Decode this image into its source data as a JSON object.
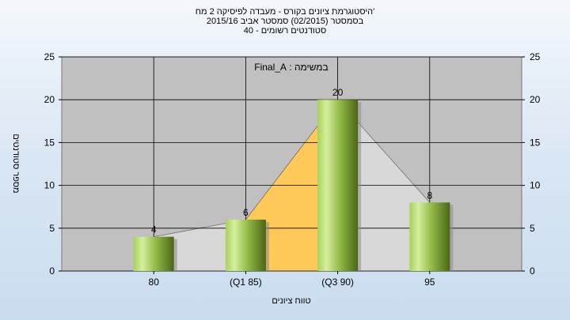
{
  "chart_data": {
    "type": "bar",
    "title_lines": [
      "היסטוגרמת ציונים בקורס - מעבדה לפיסיקה 2 מח'",
      "בסמסטר  (02/2015)  סמסטר אביב 2015/16",
      "סטודנטים רשומים - 40"
    ],
    "annotation": "במשימה : Final_A",
    "categories": [
      "80",
      "(Q1 85)",
      "(Q3 90)",
      "95"
    ],
    "values": [
      4,
      6,
      20,
      8
    ],
    "data_labels": [
      "4",
      "6",
      "20",
      "8"
    ],
    "ylim": [
      0,
      25
    ],
    "yticks": [
      0,
      5,
      10,
      15,
      20,
      25
    ],
    "xlabel": "טווח ציונים",
    "ylabel": "מספר סטודנטים",
    "secondary_y_axis": true,
    "grid": true,
    "colors": {
      "plot_background": "#c0c0c0",
      "bar_light": "#c6e68a",
      "bar_dark": "#4e6a18",
      "area_quartile": "#ffc95a",
      "area_light": "#d8d8d8",
      "grid": "#000000"
    }
  }
}
